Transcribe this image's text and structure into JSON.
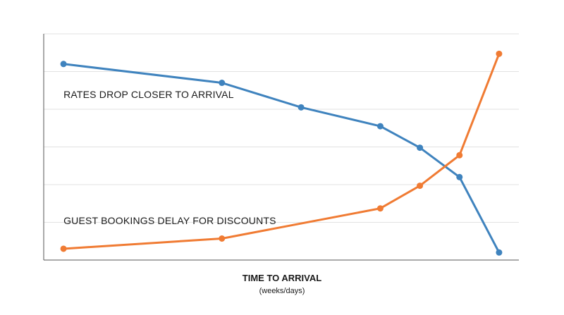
{
  "chart_data": {
    "type": "line",
    "title": "",
    "xlabel": "TIME TO ARRIVAL",
    "xlabel_sub": "(weeks/days)",
    "ylabel": "",
    "x": [
      0,
      4,
      6,
      8,
      9,
      10,
      11
    ],
    "xlim": [
      -0.5,
      11.5
    ],
    "ylim": [
      0,
      6
    ],
    "grid": true,
    "grid_y": [
      1,
      2,
      3,
      4,
      5,
      6
    ],
    "series": [
      {
        "color": "#3f83be",
        "x": [
          0,
          4,
          6,
          8,
          9,
          10,
          11
        ],
        "values": [
          5.2,
          4.7,
          4.05,
          3.55,
          2.98,
          2.2,
          0.2
        ]
      },
      {
        "color": "#f07b33",
        "x": [
          0,
          4,
          8,
          9,
          10,
          11
        ],
        "values": [
          0.3,
          0.57,
          1.37,
          1.97,
          2.78,
          5.47
        ]
      }
    ],
    "annotations": [
      {
        "text": "RATES DROP CLOSER TO ARRIVAL",
        "x": 0,
        "y": 4.3
      },
      {
        "text": "GUEST BOOKINGS DELAY FOR DISCOUNTS",
        "x": 0,
        "y": 0.95
      }
    ]
  }
}
